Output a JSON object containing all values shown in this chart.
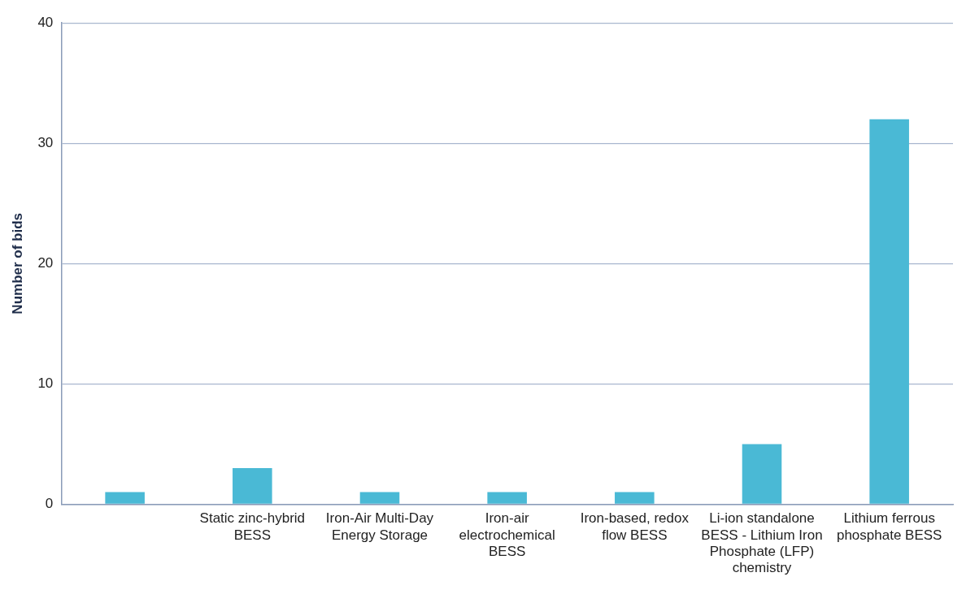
{
  "chart_data": {
    "type": "bar",
    "ylabel": "Number of bids",
    "categories": [
      null,
      "Static zinc-hybrid BESS",
      "Iron-Air Multi-Day Energy Storage",
      "Iron-air electrochemical BESS",
      "Iron-based, redox flow BESS",
      "Li-ion standalone BESS - Lithium Iron Phosphate (LFP) chemistry",
      "Lithium ferrous phosphate BESS"
    ],
    "values": [
      1,
      3,
      1,
      1,
      1,
      5,
      32
    ],
    "color": "#4ab9d5",
    "ylim": [
      0,
      40
    ],
    "yticks": [
      0,
      10,
      20,
      30,
      40
    ],
    "grid": "y",
    "legend": false
  }
}
